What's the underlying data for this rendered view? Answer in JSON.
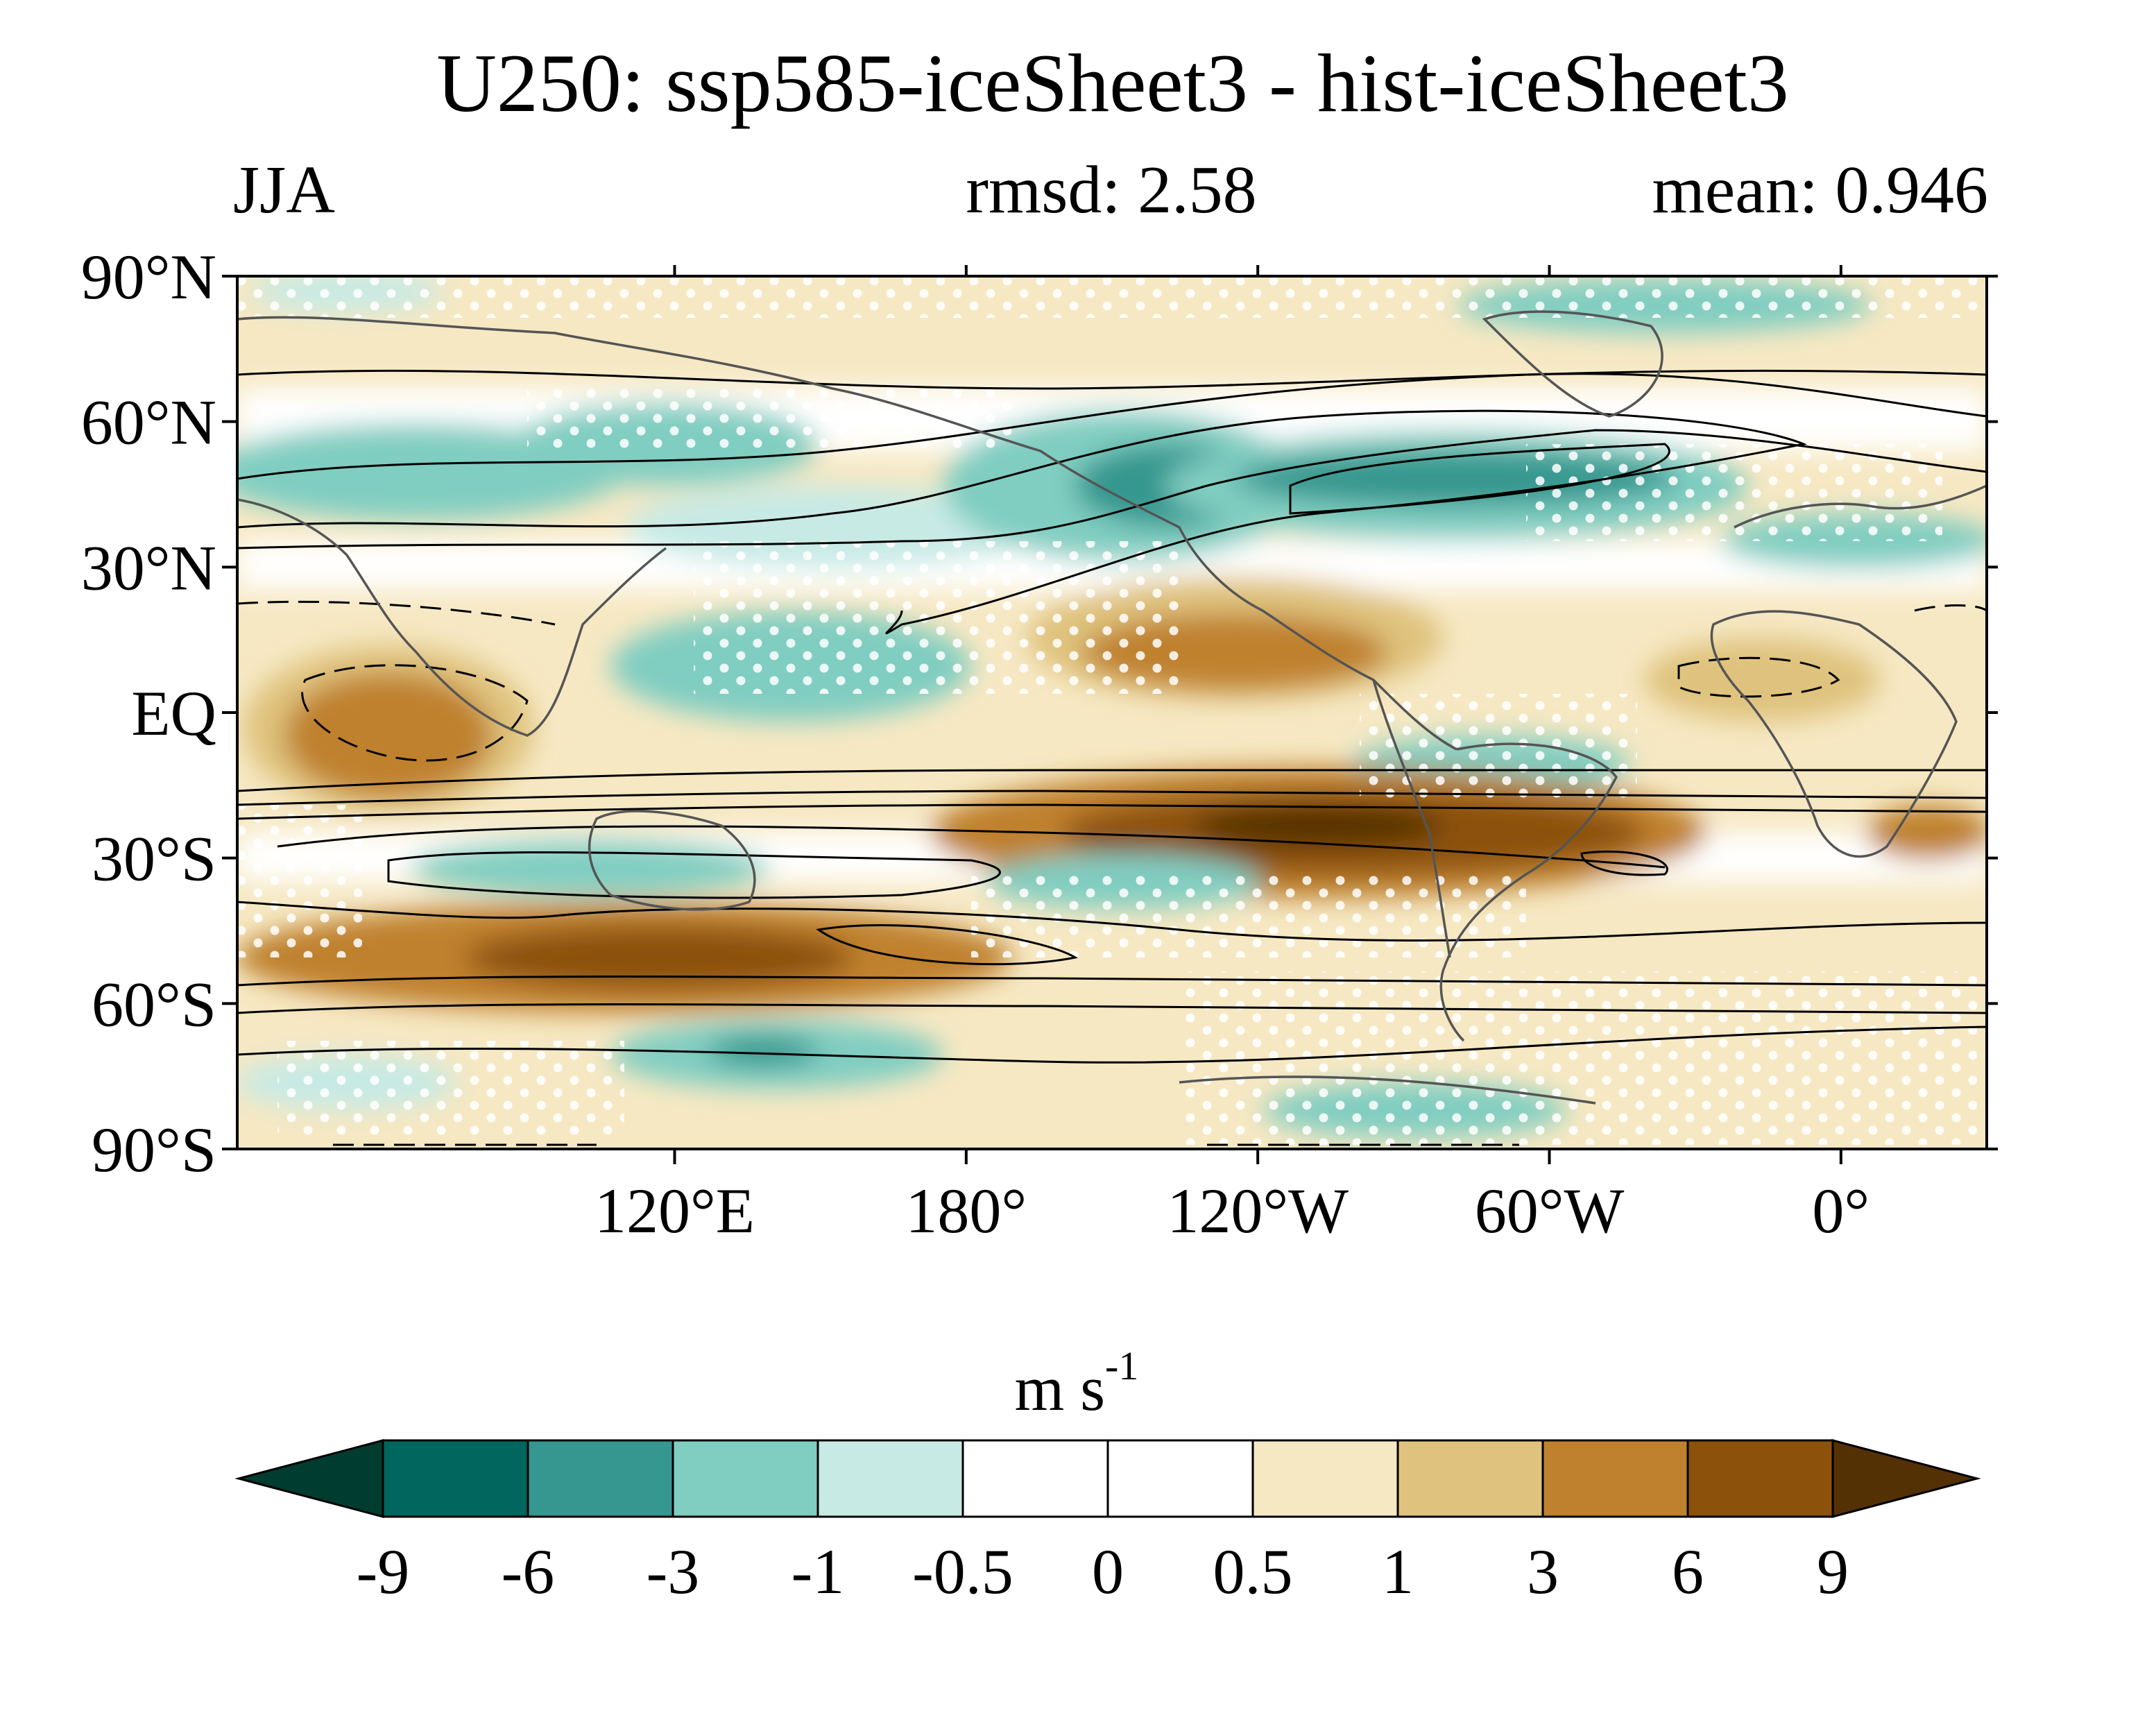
{
  "title": "U250: ssp585-iceSheet3 - hist-iceSheet3",
  "subtitle": {
    "season": "JJA",
    "rmsd": "rmsd: 2.58",
    "mean": "mean: 0.946"
  },
  "map": {
    "lon_range": [
      30,
      390
    ],
    "lat_range": [
      -90,
      90
    ],
    "lat_ticks": [
      {
        "value": 90,
        "label": "90°N"
      },
      {
        "value": 60,
        "label": "60°N"
      },
      {
        "value": 30,
        "label": "30°N"
      },
      {
        "value": 0,
        "label": "EQ"
      },
      {
        "value": -30,
        "label": "30°S"
      },
      {
        "value": -60,
        "label": "60°S"
      },
      {
        "value": -90,
        "label": "90°S"
      }
    ],
    "lon_ticks": [
      {
        "value": 120,
        "label": "120°E"
      },
      {
        "value": 180,
        "label": "180°"
      },
      {
        "value": 240,
        "label": "120°W"
      },
      {
        "value": 300,
        "label": "60°W"
      },
      {
        "value": 360,
        "label": "0°"
      }
    ]
  },
  "colorbar": {
    "units": "m s",
    "units_exp": "-1",
    "levels": [
      "-9",
      "-6",
      "-3",
      "-1",
      "-0.5",
      "0",
      "0.5",
      "1",
      "3",
      "6",
      "9"
    ],
    "colors": [
      "#003c30",
      "#01665e",
      "#35978f",
      "#80cdc1",
      "#c7eae5",
      "#ffffff",
      "#ffffff",
      "#f6e8c3",
      "#dfc27d",
      "#bf812d",
      "#8c510a",
      "#543005"
    ]
  }
}
